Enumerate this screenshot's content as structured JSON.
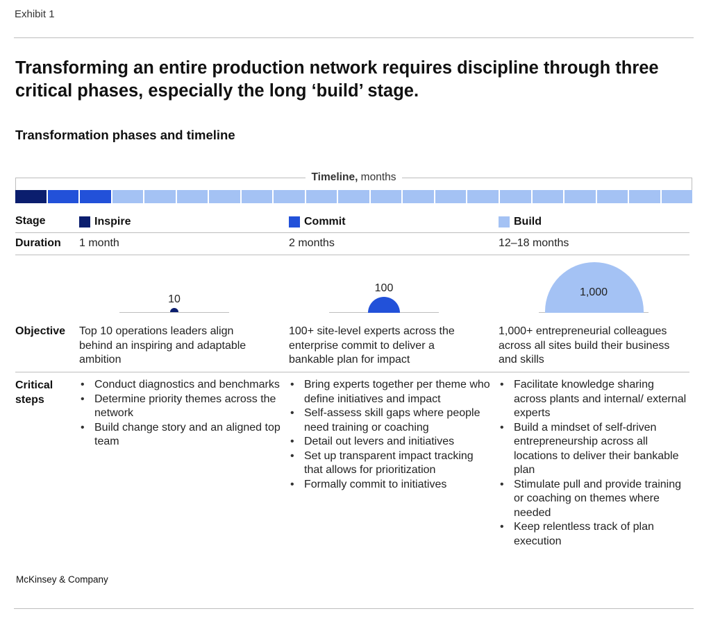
{
  "exhibit": "Exhibit 1",
  "title": "Transforming an entire production network requires discipline through three critical phases, especially the long ‘build’ stage.",
  "subtitle": "Transformation phases and timeline",
  "timeline": {
    "label_bold": "Timeline,",
    "label_unit": " months",
    "segments": [
      {
        "phase": "Inspire",
        "color": "#0b1e6e"
      },
      {
        "phase": "Commit",
        "color": "#2251d9"
      },
      {
        "phase": "Commit",
        "color": "#2251d9"
      },
      {
        "phase": "Build",
        "color": "#a4c2f4"
      },
      {
        "phase": "Build",
        "color": "#a4c2f4"
      },
      {
        "phase": "Build",
        "color": "#a4c2f4"
      },
      {
        "phase": "Build",
        "color": "#a4c2f4"
      },
      {
        "phase": "Build",
        "color": "#a4c2f4"
      },
      {
        "phase": "Build",
        "color": "#a4c2f4"
      },
      {
        "phase": "Build",
        "color": "#a4c2f4"
      },
      {
        "phase": "Build",
        "color": "#a4c2f4"
      },
      {
        "phase": "Build",
        "color": "#a4c2f4"
      },
      {
        "phase": "Build",
        "color": "#a4c2f4"
      },
      {
        "phase": "Build",
        "color": "#a4c2f4"
      },
      {
        "phase": "Build",
        "color": "#a4c2f4"
      },
      {
        "phase": "Build",
        "color": "#a4c2f4"
      },
      {
        "phase": "Build",
        "color": "#a4c2f4"
      },
      {
        "phase": "Build",
        "color": "#a4c2f4"
      },
      {
        "phase": "Build",
        "color": "#a4c2f4"
      },
      {
        "phase": "Build",
        "color": "#a4c2f4"
      },
      {
        "phase": "Build",
        "color": "#a4c2f4"
      }
    ]
  },
  "row_labels": {
    "stage": "Stage",
    "duration": "Duration",
    "objective": "Objective",
    "critical_steps": "Critical steps"
  },
  "phases": [
    {
      "name": "Inspire",
      "color": "#0b1e6e",
      "duration": "1 month",
      "people": "10",
      "people_value": 10,
      "objective": "Top 10 operations leaders align behind an inspiring and adaptable ambition",
      "steps": [
        "Conduct diagnostics and benchmarks",
        "Determine priority themes across the network",
        "Build change story and an aligned top team"
      ]
    },
    {
      "name": "Commit",
      "color": "#2251d9",
      "duration": "2 months",
      "people": "100",
      "people_value": 100,
      "objective": "100+ site-level experts across the enterprise commit to deliver a bankable plan for impact",
      "steps": [
        "Bring experts together per theme who define initiatives and impact",
        "Self-assess skill gaps where people need training or coaching",
        "Detail out levers and initiatives",
        "Set up transparent impact tracking that allows for prioritization",
        "Formally commit to initiatives"
      ]
    },
    {
      "name": "Build",
      "color": "#a4c2f4",
      "duration": "12–18 months",
      "people": "1,000",
      "people_value": 1000,
      "objective": "1,000+ entrepreneurial colleagues across all sites build their business and skills",
      "steps": [
        "Facilitate knowledge sharing across plants and internal/ external experts",
        "Build a mindset of self-driven entrepreneurship across all locations to deliver their bankable plan",
        "Stimulate pull and provide training or coaching on themes where needed",
        "Keep relentless track of plan execution"
      ]
    }
  ],
  "source": "McKinsey & Company"
}
